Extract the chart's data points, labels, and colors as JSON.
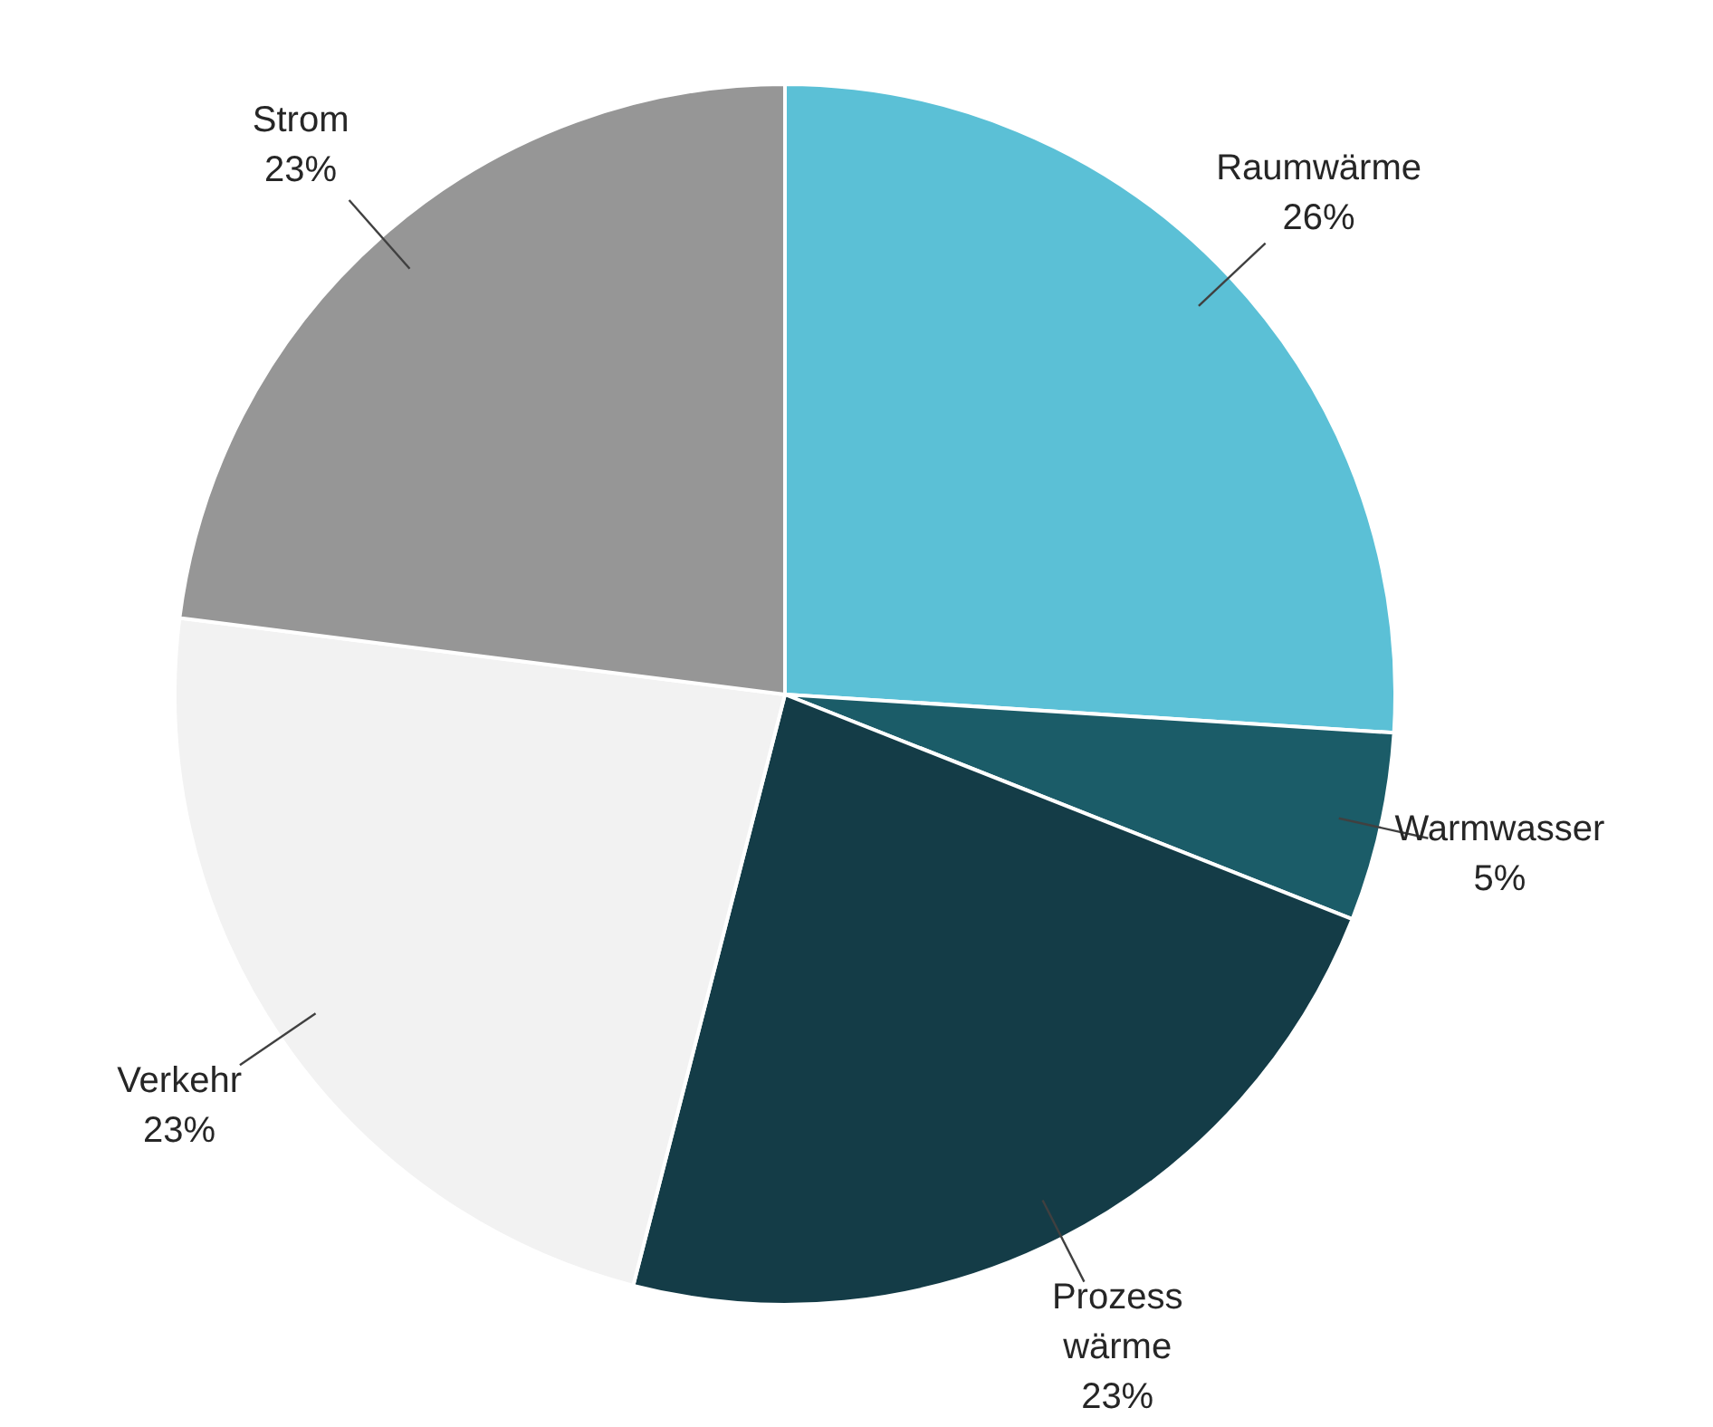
{
  "chart_data": {
    "type": "pie",
    "categories": [
      "Raumwärme",
      "Warmwasser",
      "Prozess\nwärme",
      "Verkehr",
      "Strom"
    ],
    "values": [
      26,
      5,
      23,
      23,
      23
    ],
    "value_labels": [
      "26%",
      "5%",
      "23%",
      "23%",
      "23%"
    ],
    "colors": [
      "#5bc0d6",
      "#1b5c68",
      "#143c47",
      "#f2f2f2",
      "#969696"
    ]
  }
}
